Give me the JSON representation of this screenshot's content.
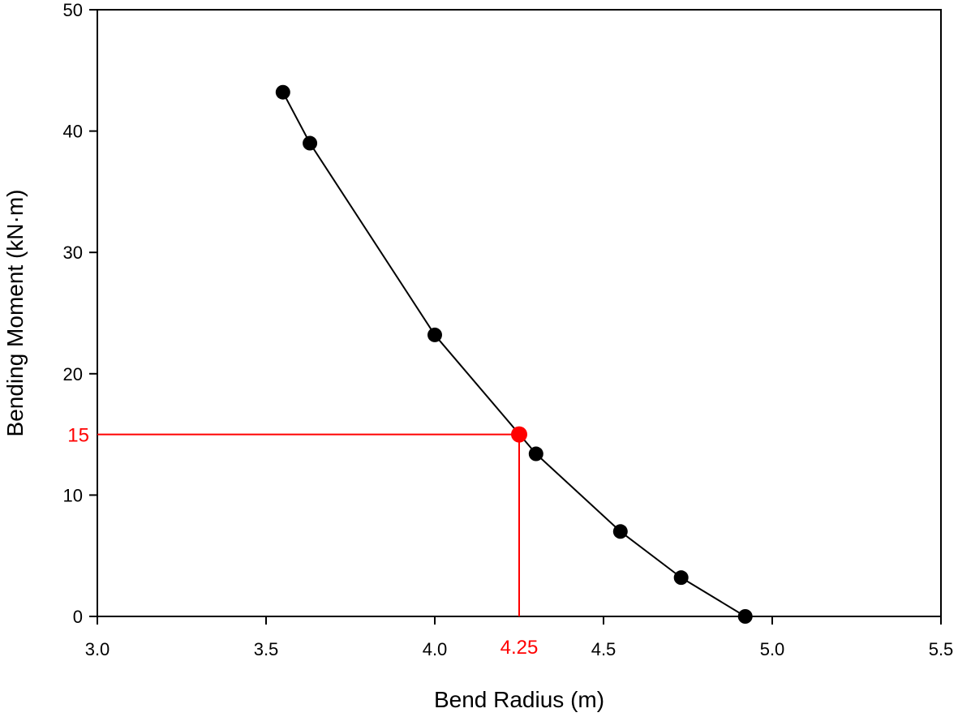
{
  "chart_data": {
    "type": "line",
    "xlabel": "Bend Radius (m)",
    "ylabel": "Bending Moment (kN·m)",
    "xlim": [
      3.0,
      5.5
    ],
    "ylim": [
      0,
      50
    ],
    "x_ticks": [
      "3.0",
      "3.5",
      "4.0",
      "4.5",
      "5.0",
      "5.5"
    ],
    "y_ticks": [
      "0",
      "10",
      "20",
      "30",
      "40",
      "50"
    ],
    "grid": false,
    "series": [
      {
        "x": [
          3.55,
          3.63,
          4.0,
          4.3,
          4.55,
          4.73,
          4.92
        ],
        "y": [
          43.2,
          39.0,
          23.2,
          13.4,
          7.0,
          3.2,
          0.0
        ],
        "color": "#000000",
        "marker": "circle"
      }
    ],
    "highlight": {
      "x": 4.25,
      "y": 15,
      "x_label": "4.25",
      "y_label": "15",
      "color": "#ff0000"
    }
  }
}
